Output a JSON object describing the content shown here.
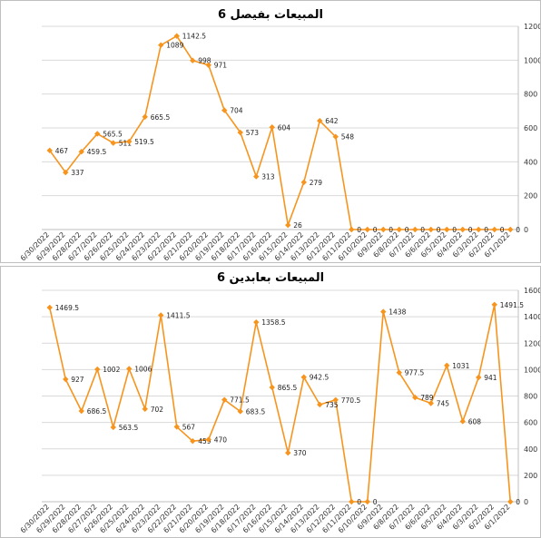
{
  "chart_data": [
    {
      "type": "line",
      "title": "المبيعات بفيصل 6",
      "categories": [
        "6/30/2022",
        "6/29/2022",
        "6/28/2022",
        "6/27/2022",
        "6/26/2022",
        "6/25/2022",
        "6/24/2022",
        "6/23/2022",
        "6/22/2022",
        "6/21/2022",
        "6/20/2022",
        "6/19/2022",
        "6/18/2022",
        "6/17/2022",
        "6/16/2022",
        "6/15/2022",
        "6/14/2022",
        "6/13/2022",
        "6/12/2022",
        "6/11/2022",
        "6/10/2022",
        "6/9/2022",
        "6/8/2022",
        "6/7/2022",
        "6/6/2022",
        "6/5/2022",
        "6/4/2022",
        "6/3/2022",
        "6/2/2022",
        "6/1/2022"
      ],
      "values": [
        467,
        337,
        459.5,
        565.5,
        511,
        519.5,
        665.5,
        1089,
        1142.5,
        998,
        971,
        704,
        573,
        313,
        604,
        26,
        279,
        642,
        548,
        0,
        0,
        0,
        0,
        0,
        0,
        0,
        0,
        0,
        0,
        0
      ],
      "data_labels": [
        "467",
        "337",
        "459.5",
        "565.5",
        "511",
        "519.5",
        "665.5",
        "1089",
        "1142.5",
        "998",
        "971",
        "704",
        "573",
        "313",
        "604",
        "26",
        "279",
        "642",
        "548",
        "0",
        "0",
        "0",
        "0",
        "0",
        "0",
        "0",
        "0",
        "0",
        "0",
        "0"
      ],
      "ylim": [
        0,
        1200
      ],
      "yticks": [
        "0",
        "200",
        "400",
        "600",
        "800",
        "1000",
        "1200"
      ],
      "y_axis_side": "right",
      "grid": true,
      "color": "#f7941d"
    },
    {
      "type": "line",
      "title": "المبيعات بعابدين 6",
      "categories": [
        "6/30/2022",
        "6/29/2022",
        "6/28/2022",
        "6/27/2022",
        "6/26/2022",
        "6/25/2022",
        "6/24/2022",
        "6/23/2022",
        "6/22/2022",
        "6/21/2022",
        "6/20/2022",
        "6/19/2022",
        "6/18/2022",
        "6/17/2022",
        "6/16/2022",
        "6/15/2022",
        "6/14/2022",
        "6/13/2022",
        "6/12/2022",
        "6/11/2022",
        "6/10/2022",
        "6/9/2022",
        "6/8/2022",
        "6/7/2022",
        "6/6/2022",
        "6/5/2022",
        "6/4/2022",
        "6/3/2022",
        "6/2/2022",
        "6/1/2022"
      ],
      "values": [
        1469.5,
        927,
        686.5,
        1002,
        563.5,
        1006,
        702,
        1411.5,
        567,
        459,
        470,
        771.5,
        683.5,
        1358.5,
        865.5,
        370,
        942.5,
        735,
        770.5,
        0,
        0,
        1438,
        977.5,
        789,
        745,
        1031,
        608,
        941,
        1491.5,
        0
      ],
      "data_labels": [
        "1469.5",
        "927",
        "686.5",
        "1002",
        "563.5",
        "1006",
        "702",
        "1411.5",
        "567",
        "459",
        "470",
        "771.5",
        "683.5",
        "1358.5",
        "865.5",
        "370",
        "942.5",
        "735",
        "770.5",
        "0",
        "0",
        "1438",
        "977.5",
        "789",
        "745",
        "1031",
        "608",
        "941",
        "1491.5",
        "0"
      ],
      "ylim": [
        0,
        1600
      ],
      "yticks": [
        "0",
        "200",
        "400",
        "600",
        "800",
        "1000",
        "1200",
        "1400",
        "1600"
      ],
      "y_axis_side": "right",
      "grid": true,
      "color": "#f7941d"
    }
  ]
}
